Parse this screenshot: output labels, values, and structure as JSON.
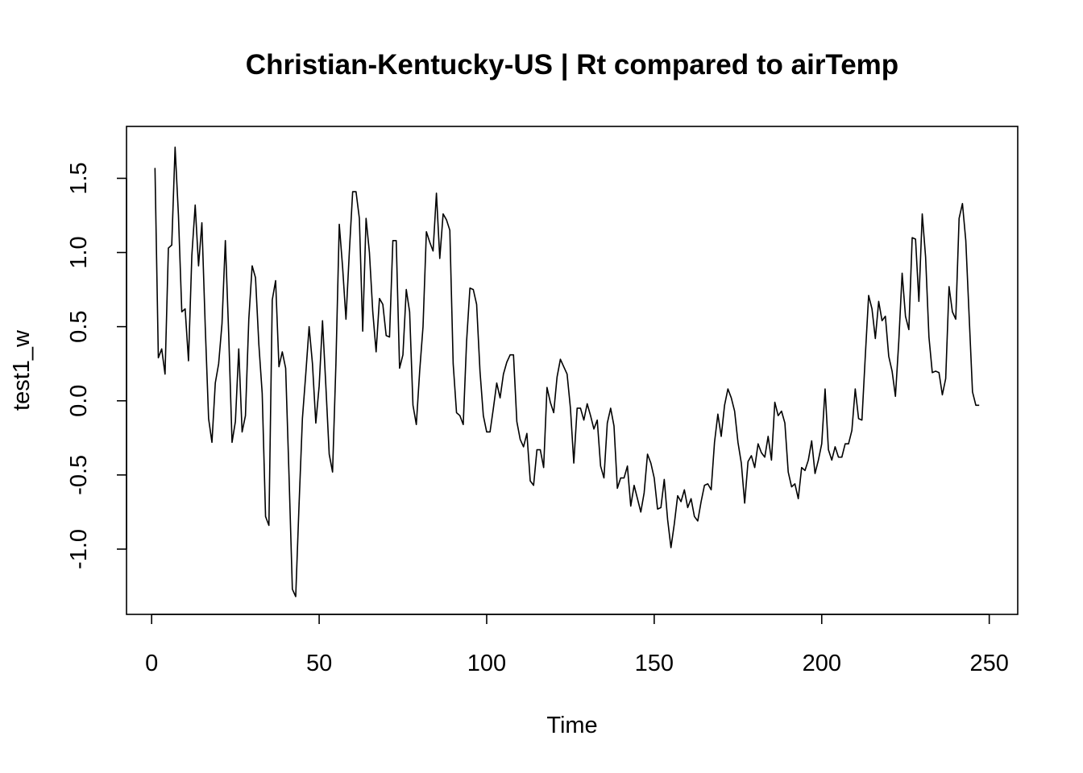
{
  "chart_data": {
    "type": "line",
    "title": "Christian-Kentucky-US | Rt compared to airTemp",
    "xlabel": "Time",
    "ylabel": "test1_w",
    "xlim": [
      -7.5,
      258.5
    ],
    "ylim": [
      -1.44,
      1.85
    ],
    "x_ticks": [
      0,
      50,
      100,
      150,
      200,
      250
    ],
    "x_tick_labels": [
      "0",
      "50",
      "100",
      "150",
      "200",
      "250"
    ],
    "y_ticks": [
      -1.0,
      -0.5,
      0.0,
      0.5,
      1.0,
      1.5
    ],
    "y_tick_labels": [
      "-1.0",
      "-0.5",
      "0.0",
      "0.5",
      "1.0",
      "1.5"
    ],
    "grid": false,
    "x_start": 1,
    "series": [
      {
        "values": [
          1.57,
          0.29,
          0.35,
          0.18,
          1.03,
          1.05,
          1.71,
          1.25,
          0.6,
          0.62,
          0.27,
          0.98,
          1.32,
          0.91,
          1.2,
          0.5,
          -0.12,
          -0.28,
          0.12,
          0.25,
          0.52,
          1.08,
          0.45,
          -0.28,
          -0.14,
          0.35,
          -0.21,
          -0.1,
          0.55,
          0.91,
          0.83,
          0.38,
          0.05,
          -0.78,
          -0.84,
          0.68,
          0.81,
          0.23,
          0.33,
          0.22,
          -0.5,
          -1.27,
          -1.32,
          -0.7,
          -0.12,
          0.18,
          0.5,
          0.25,
          -0.15,
          0.1,
          0.54,
          0.1,
          -0.36,
          -0.48,
          0.25,
          1.19,
          0.9,
          0.55,
          1.0,
          1.41,
          1.41,
          1.23,
          0.47,
          1.23,
          1.0,
          0.6,
          0.33,
          0.69,
          0.65,
          0.44,
          0.43,
          1.08,
          1.08,
          0.22,
          0.31,
          0.75,
          0.6,
          -0.03,
          -0.16,
          0.2,
          0.5,
          1.14,
          1.07,
          1.01,
          1.4,
          0.96,
          1.26,
          1.22,
          1.15,
          0.25,
          -0.08,
          -0.1,
          -0.16,
          0.4,
          0.76,
          0.75,
          0.65,
          0.2,
          -0.1,
          -0.21,
          -0.21,
          -0.05,
          0.12,
          0.02,
          0.18,
          0.26,
          0.31,
          0.31,
          -0.14,
          -0.26,
          -0.31,
          -0.22,
          -0.54,
          -0.57,
          -0.33,
          -0.33,
          -0.45,
          0.09,
          -0.01,
          -0.08,
          0.16,
          0.28,
          0.23,
          0.18,
          -0.05,
          -0.42,
          -0.05,
          -0.05,
          -0.13,
          -0.02,
          -0.1,
          -0.19,
          -0.13,
          -0.44,
          -0.52,
          -0.15,
          -0.05,
          -0.17,
          -0.59,
          -0.52,
          -0.52,
          -0.44,
          -0.71,
          -0.57,
          -0.66,
          -0.75,
          -0.62,
          -0.36,
          -0.42,
          -0.52,
          -0.73,
          -0.72,
          -0.53,
          -0.8,
          -0.99,
          -0.83,
          -0.64,
          -0.68,
          -0.6,
          -0.72,
          -0.66,
          -0.78,
          -0.81,
          -0.68,
          -0.57,
          -0.56,
          -0.6,
          -0.28,
          -0.09,
          -0.24,
          -0.03,
          0.08,
          0.02,
          -0.07,
          -0.28,
          -0.42,
          -0.69,
          -0.41,
          -0.37,
          -0.45,
          -0.29,
          -0.35,
          -0.38,
          -0.24,
          -0.4,
          -0.01,
          -0.1,
          -0.07,
          -0.15,
          -0.48,
          -0.58,
          -0.56,
          -0.66,
          -0.45,
          -0.47,
          -0.4,
          -0.27,
          -0.49,
          -0.4,
          -0.29,
          0.08,
          -0.33,
          -0.4,
          -0.31,
          -0.38,
          -0.38,
          -0.29,
          -0.29,
          -0.2,
          0.08,
          -0.12,
          -0.13,
          0.3,
          0.71,
          0.62,
          0.42,
          0.67,
          0.54,
          0.57,
          0.3,
          0.2,
          0.03,
          0.4,
          0.86,
          0.57,
          0.48,
          1.1,
          1.09,
          0.67,
          1.26,
          0.97,
          0.43,
          0.19,
          0.2,
          0.19,
          0.04,
          0.15,
          0.77,
          0.6,
          0.55,
          1.23,
          1.33,
          1.08,
          0.57,
          0.06,
          -0.03,
          -0.03
        ]
      }
    ]
  }
}
